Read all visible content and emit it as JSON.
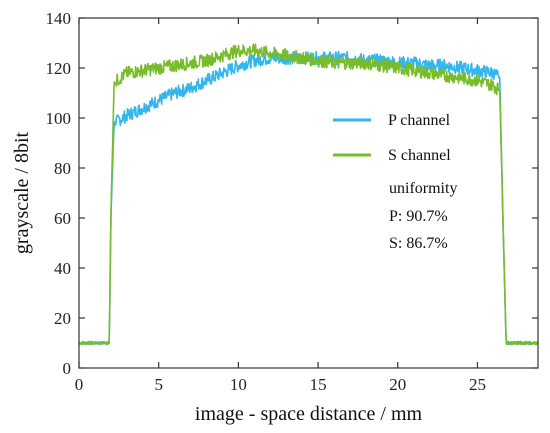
{
  "chart_data": {
    "type": "line",
    "title": "",
    "xlabel": "image - space distance / mm",
    "ylabel": "grayscale / 8bit",
    "xlim": [
      0,
      28.8
    ],
    "ylim": [
      0,
      140
    ],
    "xticks": [
      0,
      5,
      10,
      15,
      20,
      25
    ],
    "yticks": [
      0,
      20,
      40,
      60,
      80,
      100,
      120,
      140
    ],
    "grid": false,
    "legend": {
      "position": "right-middle"
    },
    "colors": {
      "P": "#33b5ee",
      "S": "#78bc2a"
    },
    "series": [
      {
        "name": "P  channel",
        "x": [
          0,
          1.9,
          2.0,
          2.2,
          3,
          4,
          5,
          6,
          7,
          8,
          9,
          10,
          11,
          12,
          13,
          14,
          15,
          16,
          17,
          18,
          19,
          20,
          21,
          22,
          23,
          24,
          25,
          26,
          26.4,
          26.6,
          26.8,
          28.8
        ],
        "y": [
          10,
          10,
          60,
          98,
          101,
          104,
          107,
          110,
          112,
          115,
          118,
          121,
          123,
          124,
          124,
          124,
          124,
          124,
          124,
          123,
          123,
          122,
          122,
          121,
          121,
          120,
          119,
          118,
          116,
          60,
          10,
          10
        ]
      },
      {
        "name": "S  channel",
        "x": [
          0,
          1.9,
          2.0,
          2.2,
          3,
          4,
          5,
          6,
          7,
          8,
          9,
          10,
          11,
          12,
          13,
          14,
          15,
          16,
          17,
          18,
          19,
          20,
          21,
          22,
          23,
          24,
          25,
          26,
          26.4,
          26.6,
          26.8,
          28.8
        ],
        "y": [
          10,
          10,
          60,
          114,
          118,
          119,
          120,
          121,
          122,
          123,
          125,
          127,
          127,
          126,
          125,
          124,
          123,
          122,
          122,
          122,
          121,
          120,
          119,
          118,
          117,
          116,
          115,
          113,
          111,
          60,
          10,
          10
        ]
      }
    ],
    "annotations": {
      "heading": "uniformity",
      "lines": [
        "P:  90.7%",
        "S:  86.7%"
      ]
    }
  }
}
